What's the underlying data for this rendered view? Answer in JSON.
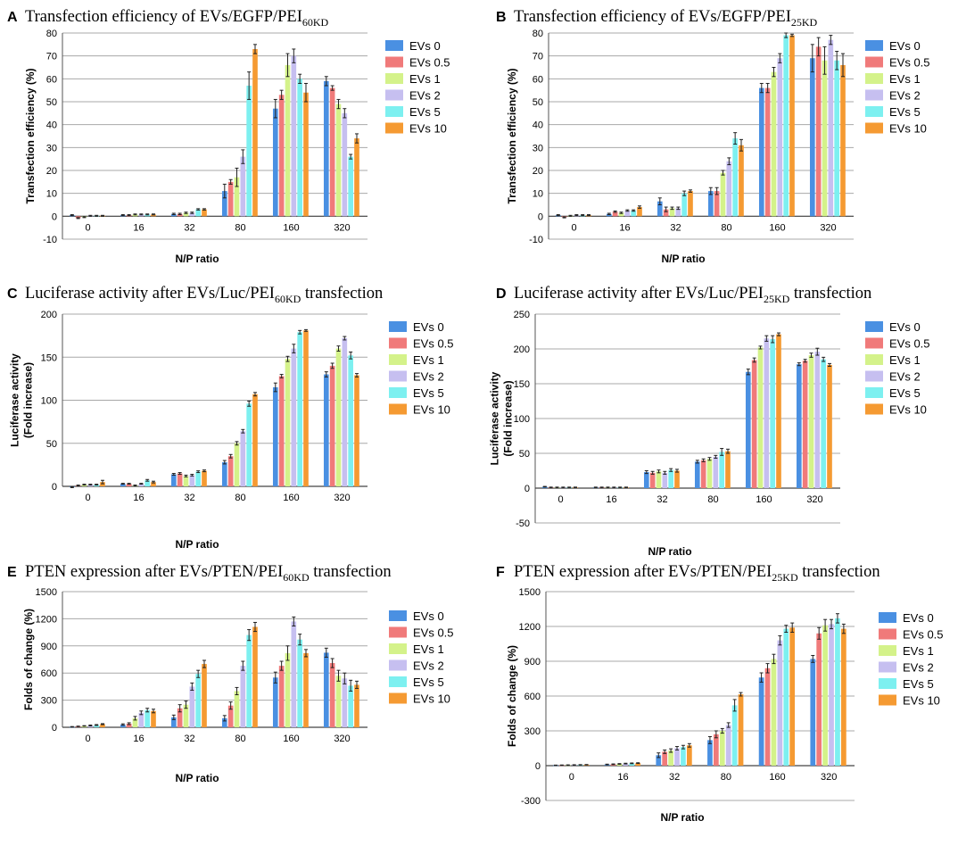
{
  "chart_data": [
    {
      "letter": "A",
      "title": "Transfection efficiency of EVs/EGFP/PEI",
      "title_sub": "60KD",
      "title_suffix": "",
      "type": "bar",
      "categories": [
        "0",
        "16",
        "32",
        "80",
        "160",
        "320"
      ],
      "xlabel": "N/P ratio",
      "ylabel": [
        "Transfection efficiency (%)"
      ],
      "ylim": [
        -10,
        80
      ],
      "yticks": [
        -10,
        0,
        10,
        20,
        30,
        40,
        50,
        60,
        70,
        80
      ],
      "grid": true,
      "legend_position": "right",
      "series": [
        {
          "name": "EVs 0",
          "color": "#4a90e2",
          "values": [
            0.5,
            0.5,
            1.0,
            11,
            47,
            59
          ],
          "errors": [
            0.2,
            0.2,
            0.3,
            3,
            4,
            2
          ]
        },
        {
          "name": "EVs 0.5",
          "color": "#f07a7a",
          "values": [
            -0.8,
            0.5,
            1.0,
            15,
            53,
            56
          ],
          "errors": [
            0.2,
            0.2,
            0.3,
            1,
            2,
            1
          ]
        },
        {
          "name": "EVs 1",
          "color": "#d4f28a",
          "values": [
            -0.4,
            0.8,
            1.5,
            17,
            66,
            49
          ],
          "errors": [
            0.2,
            0.2,
            0.3,
            4,
            5,
            2
          ]
        },
        {
          "name": "EVs 2",
          "color": "#c6bff0",
          "values": [
            0.2,
            0.8,
            1.5,
            26,
            70,
            45
          ],
          "errors": [
            0.2,
            0.2,
            0.3,
            3,
            3,
            2
          ]
        },
        {
          "name": "EVs 5",
          "color": "#7df0f0",
          "values": [
            0.2,
            0.8,
            3.0,
            57,
            60,
            26
          ],
          "errors": [
            0.2,
            0.2,
            0.3,
            6,
            2,
            1
          ]
        },
        {
          "name": "EVs 10",
          "color": "#f59a32",
          "values": [
            0.2,
            0.8,
            3.0,
            73,
            54,
            34
          ],
          "errors": [
            0.2,
            0.2,
            0.3,
            2,
            4,
            2
          ]
        }
      ]
    },
    {
      "letter": "B",
      "title": "Transfection efficiency of EVs/EGFP/PEI",
      "title_sub": "25KD",
      "title_suffix": "",
      "type": "bar",
      "categories": [
        "0",
        "16",
        "32",
        "80",
        "160",
        "320"
      ],
      "xlabel": "N/P ratio",
      "ylabel": [
        "Transfection efficiency (%)"
      ],
      "ylim": [
        -10,
        80
      ],
      "yticks": [
        -10,
        0,
        10,
        20,
        30,
        40,
        50,
        60,
        70,
        80
      ],
      "grid": true,
      "legend_position": "right",
      "series": [
        {
          "name": "EVs 0",
          "color": "#4a90e2",
          "values": [
            0.5,
            1.0,
            6.5,
            11,
            56,
            69
          ],
          "errors": [
            0.2,
            0.3,
            1.5,
            1.5,
            2,
            6
          ]
        },
        {
          "name": "EVs 0.5",
          "color": "#f07a7a",
          "values": [
            -0.5,
            2.0,
            3.0,
            11,
            56,
            74
          ],
          "errors": [
            0.2,
            0.3,
            1,
            1.5,
            2,
            4
          ]
        },
        {
          "name": "EVs 1",
          "color": "#d4f28a",
          "values": [
            0.2,
            1.5,
            3.5,
            19,
            63,
            68
          ],
          "errors": [
            0.2,
            0.3,
            0.5,
            1,
            2,
            6
          ]
        },
        {
          "name": "EVs 2",
          "color": "#c6bff0",
          "values": [
            0.5,
            2.5,
            3.5,
            24,
            69,
            77
          ],
          "errors": [
            0.2,
            0.3,
            0.5,
            1.5,
            2,
            2
          ]
        },
        {
          "name": "EVs 5",
          "color": "#7df0f0",
          "values": [
            0.5,
            2.5,
            10,
            34,
            79,
            68
          ],
          "errors": [
            0.2,
            0.3,
            1,
            2.5,
            1,
            4
          ]
        },
        {
          "name": "EVs 10",
          "color": "#f59a32",
          "values": [
            0.5,
            4.0,
            11,
            31,
            79,
            66
          ],
          "errors": [
            0.2,
            0.5,
            0.5,
            2.5,
            0.5,
            5
          ]
        }
      ]
    },
    {
      "letter": "C",
      "title": "Luciferase activity after EVs/Luc/PEI",
      "title_sub": "60KD",
      "title_suffix": " transfection",
      "type": "bar",
      "categories": [
        "0",
        "16",
        "32",
        "80",
        "160",
        "320"
      ],
      "xlabel": "N/P ratio",
      "ylabel": [
        "Luciferase activity",
        "(Fold increase)"
      ],
      "ylim": [
        0,
        200
      ],
      "yticks": [
        0,
        50,
        100,
        150,
        200
      ],
      "grid": true,
      "legend_position": "right",
      "series": [
        {
          "name": "EVs 0",
          "color": "#4a90e2",
          "values": [
            -1,
            3,
            14,
            28,
            115,
            130
          ],
          "errors": [
            0.5,
            0.5,
            1,
            2,
            5,
            3
          ]
        },
        {
          "name": "EVs 0.5",
          "color": "#f07a7a",
          "values": [
            1,
            3,
            15,
            35,
            128,
            140
          ],
          "errors": [
            0.5,
            0.5,
            1,
            2,
            2,
            3
          ]
        },
        {
          "name": "EVs 1",
          "color": "#d4f28a",
          "values": [
            2,
            1,
            12,
            50,
            148,
            160
          ],
          "errors": [
            0.5,
            0.5,
            1,
            2,
            3,
            3
          ]
        },
        {
          "name": "EVs 2",
          "color": "#c6bff0",
          "values": [
            2,
            3,
            13,
            64,
            160,
            172
          ],
          "errors": [
            0.5,
            0.5,
            1,
            2,
            5,
            2
          ]
        },
        {
          "name": "EVs 5",
          "color": "#7df0f0",
          "values": [
            2,
            7,
            17,
            96,
            179,
            152
          ],
          "errors": [
            0.5,
            1,
            1,
            3,
            2,
            4
          ]
        },
        {
          "name": "EVs 10",
          "color": "#f59a32",
          "values": [
            5,
            5,
            18,
            107,
            181,
            129
          ],
          "errors": [
            2,
            1,
            1,
            2,
            1,
            2
          ]
        }
      ]
    },
    {
      "letter": "D",
      "title": "Luciferase activity after EVs/Luc/PEI",
      "title_sub": "25KD",
      "title_suffix": " transfection",
      "type": "bar",
      "categories": [
        "0",
        "16",
        "32",
        "80",
        "160",
        "320"
      ],
      "xlabel": "N/P ratio",
      "ylabel": [
        "Luciferase activity",
        "(Fold increase)"
      ],
      "ylim": [
        -50,
        250
      ],
      "yticks": [
        -50,
        0,
        50,
        100,
        150,
        200,
        250
      ],
      "grid": true,
      "legend_position": "right",
      "series": [
        {
          "name": "EVs 0",
          "color": "#4a90e2",
          "values": [
            2,
            1,
            23,
            38,
            167,
            178
          ],
          "errors": [
            0.5,
            0.5,
            2,
            2,
            4,
            2
          ]
        },
        {
          "name": "EVs 0.5",
          "color": "#f07a7a",
          "values": [
            1,
            1,
            22,
            40,
            184,
            183
          ],
          "errors": [
            0.5,
            0.5,
            2,
            2,
            3,
            2
          ]
        },
        {
          "name": "EVs 1",
          "color": "#d4f28a",
          "values": [
            1,
            1,
            24,
            42,
            202,
            191
          ],
          "errors": [
            0.5,
            0.5,
            2,
            2,
            2,
            3
          ]
        },
        {
          "name": "EVs 2",
          "color": "#c6bff0",
          "values": [
            1,
            1,
            22,
            45,
            215,
            196
          ],
          "errors": [
            0.5,
            0.5,
            2,
            2,
            4,
            5
          ]
        },
        {
          "name": "EVs 5",
          "color": "#7df0f0",
          "values": [
            1,
            1,
            26,
            52,
            214,
            185
          ],
          "errors": [
            0.5,
            0.5,
            2,
            5,
            5,
            3
          ]
        },
        {
          "name": "EVs 10",
          "color": "#f59a32",
          "values": [
            1,
            1,
            25,
            53,
            221,
            177
          ],
          "errors": [
            0.5,
            0.5,
            2,
            3,
            2,
            2
          ]
        }
      ]
    },
    {
      "letter": "E",
      "title": "PTEN expression after EVs/PTEN/PEI",
      "title_sub": "60KD",
      "title_suffix": " transfection",
      "type": "bar",
      "categories": [
        "0",
        "16",
        "32",
        "80",
        "160",
        "320"
      ],
      "xlabel": "N/P ratio",
      "ylabel": [
        "Folds of change (%)"
      ],
      "ylim": [
        0,
        1500
      ],
      "yticks": [
        0,
        300,
        600,
        900,
        1200,
        1500
      ],
      "grid": true,
      "legend_position": "right",
      "series": [
        {
          "name": "EVs 0",
          "color": "#4a90e2",
          "values": [
            5,
            30,
            110,
            100,
            550,
            825
          ],
          "errors": [
            3,
            8,
            25,
            30,
            60,
            50
          ]
        },
        {
          "name": "EVs 0.5",
          "color": "#f07a7a",
          "values": [
            10,
            40,
            210,
            240,
            680,
            710
          ],
          "errors": [
            3,
            10,
            40,
            40,
            50,
            50
          ]
        },
        {
          "name": "EVs 1",
          "color": "#d4f28a",
          "values": [
            15,
            100,
            250,
            400,
            820,
            570
          ],
          "errors": [
            3,
            20,
            40,
            40,
            80,
            60
          ]
        },
        {
          "name": "EVs 2",
          "color": "#c6bff0",
          "values": [
            20,
            160,
            450,
            680,
            1170,
            540
          ],
          "errors": [
            5,
            20,
            40,
            50,
            50,
            60
          ]
        },
        {
          "name": "EVs 5",
          "color": "#7df0f0",
          "values": [
            25,
            190,
            590,
            1020,
            970,
            460
          ],
          "errors": [
            5,
            20,
            40,
            60,
            60,
            60
          ]
        },
        {
          "name": "EVs 10",
          "color": "#f59a32",
          "values": [
            35,
            180,
            700,
            1110,
            820,
            470
          ],
          "errors": [
            5,
            20,
            40,
            50,
            40,
            40
          ]
        }
      ]
    },
    {
      "letter": "F",
      "title": "PTEN expression after EVs/PTEN/PEI",
      "title_sub": "25KD",
      "title_suffix": " transfection",
      "type": "bar",
      "categories": [
        "0",
        "16",
        "32",
        "80",
        "160",
        "320"
      ],
      "xlabel": "N/P ratio",
      "ylabel": [
        "Folds of change (%)"
      ],
      "ylim": [
        -300,
        1500
      ],
      "yticks": [
        -300,
        0,
        300,
        600,
        900,
        1200,
        1500
      ],
      "grid": true,
      "legend_position": "right",
      "series": [
        {
          "name": "EVs 0",
          "color": "#4a90e2",
          "values": [
            3,
            10,
            90,
            220,
            760,
            920
          ],
          "errors": [
            2,
            3,
            20,
            30,
            40,
            30
          ]
        },
        {
          "name": "EVs 0.5",
          "color": "#f07a7a",
          "values": [
            4,
            12,
            120,
            270,
            840,
            1140
          ],
          "errors": [
            2,
            3,
            15,
            30,
            40,
            50
          ]
        },
        {
          "name": "EVs 1",
          "color": "#d4f28a",
          "values": [
            5,
            15,
            130,
            300,
            920,
            1210
          ],
          "errors": [
            2,
            3,
            15,
            20,
            40,
            50
          ]
        },
        {
          "name": "EVs 2",
          "color": "#c6bff0",
          "values": [
            6,
            18,
            150,
            350,
            1080,
            1220
          ],
          "errors": [
            2,
            3,
            15,
            20,
            40,
            40
          ]
        },
        {
          "name": "EVs 5",
          "color": "#7df0f0",
          "values": [
            7,
            20,
            160,
            520,
            1180,
            1270
          ],
          "errors": [
            2,
            3,
            15,
            50,
            30,
            40
          ]
        },
        {
          "name": "EVs 10",
          "color": "#f59a32",
          "values": [
            8,
            22,
            175,
            615,
            1190,
            1180
          ],
          "errors": [
            2,
            3,
            15,
            15,
            40,
            40
          ]
        }
      ]
    }
  ]
}
